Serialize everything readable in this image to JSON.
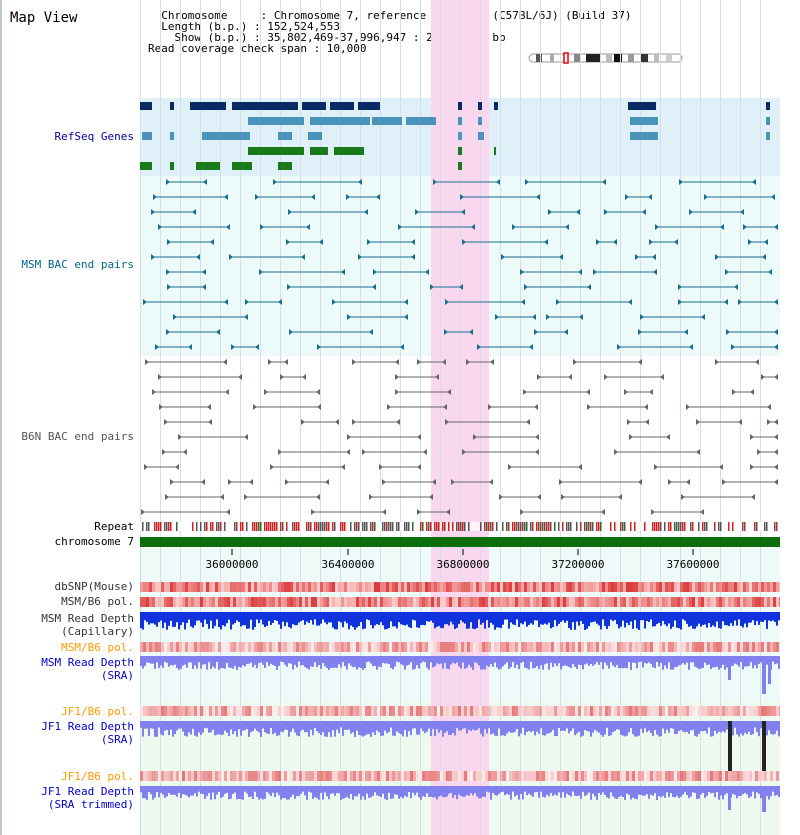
{
  "header": {
    "view_title": "Map View",
    "chromosome_line": "  Chromosome     : Chromosome 7, reference assembly (C57BL/6J) (Build 37)",
    "length_line": "  Length (b.p.) : 152,524,553",
    "show_line": "    Show (b.p.) : 35,802,469-37,996,947 : 2,194,479 bp",
    "coverage_line": "Read coverage check span : 10,000"
  },
  "tracks": {
    "refseq": {
      "label": "RefSeq Genes",
      "color": "#000099"
    },
    "msm_bac": {
      "label": "MSM BAC end pairs",
      "color": "#006688"
    },
    "b6n_bac": {
      "label": "B6N BAC end pairs",
      "color": "#555555"
    },
    "repeat": {
      "label": "Repeat"
    },
    "chromosome": {
      "label": "chromosome 7"
    },
    "dbsnp": {
      "label": "dbSNP(Mouse)"
    },
    "msm_b6_pol_cap": {
      "label": "MSM/B6 pol."
    },
    "msm_read_depth_cap": {
      "label1": "MSM Read Depth",
      "label2": "(Capillary)"
    },
    "msm_b6_pol_sra": {
      "label": "MSM/B6 pol.",
      "color": "#ff9900"
    },
    "msm_read_depth_sra": {
      "label1": "MSM Read Depth",
      "label2": "(SRA)",
      "color": "#0000cc"
    },
    "jf1_b6_pol": {
      "label": "JF1/B6 pol.",
      "color": "#ff9900"
    },
    "jf1_read_depth": {
      "label1": "JF1 Read Depth",
      "label2": "(SRA)",
      "color": "#0000cc"
    },
    "jf1_b6_pol_trim": {
      "label": "JF1/B6 pol.",
      "color": "#ff9900"
    },
    "jf1_read_depth_trim": {
      "label1": "JF1 Read Depth",
      "label2": "(SRA trimmed)",
      "color": "#0000cc"
    }
  },
  "axis": {
    "ticks": [
      "36000000",
      "36400000",
      "36800000",
      "37200000",
      "37600000"
    ]
  },
  "colors": {
    "highlight": "#f9d8ef",
    "refseq_band": "#dff0f8",
    "bac_band": "#ecfafa",
    "chromosome": "#0a6e0a",
    "gene_dark": "#0a2a66",
    "gene_mid": "#4a93bb",
    "gene_green": "#1a7a1a"
  }
}
